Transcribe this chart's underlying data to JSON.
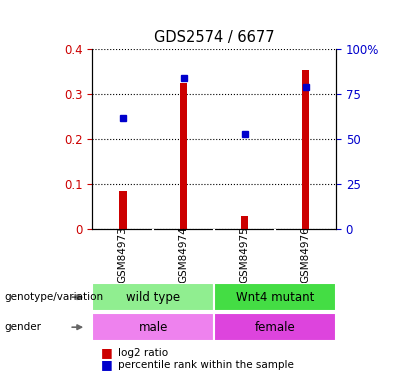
{
  "title": "GDS2574 / 6677",
  "samples": [
    "GSM84973",
    "GSM84974",
    "GSM84975",
    "GSM84976"
  ],
  "log2_ratio": [
    0.085,
    0.325,
    0.028,
    0.352
  ],
  "percentile_rank_pct": [
    61.25,
    83.75,
    52.5,
    78.75
  ],
  "left_ylim": [
    0,
    0.4
  ],
  "right_ylim": [
    0,
    100
  ],
  "left_yticks": [
    0,
    0.1,
    0.2,
    0.3,
    0.4
  ],
  "right_yticks": [
    0,
    25,
    50,
    75,
    100
  ],
  "right_yticklabels": [
    "0",
    "25",
    "50",
    "75",
    "100%"
  ],
  "bar_color": "#cc0000",
  "marker_color": "#0000cc",
  "bar_width": 0.12,
  "genotype_groups": [
    {
      "label": "wild type",
      "samples": [
        0,
        1
      ],
      "color": "#90ee90"
    },
    {
      "label": "Wnt4 mutant",
      "samples": [
        2,
        3
      ],
      "color": "#44dd44"
    }
  ],
  "gender_groups": [
    {
      "label": "male",
      "samples": [
        0,
        1
      ],
      "color": "#ee82ee"
    },
    {
      "label": "female",
      "samples": [
        2,
        3
      ],
      "color": "#dd44dd"
    }
  ],
  "row_labels": [
    "genotype/variation",
    "gender"
  ],
  "legend_items": [
    {
      "label": "log2 ratio",
      "color": "#cc0000"
    },
    {
      "label": "percentile rank within the sample",
      "color": "#0000cc"
    }
  ],
  "background_color": "#ffffff",
  "sample_bg_color": "#c8c8c8"
}
